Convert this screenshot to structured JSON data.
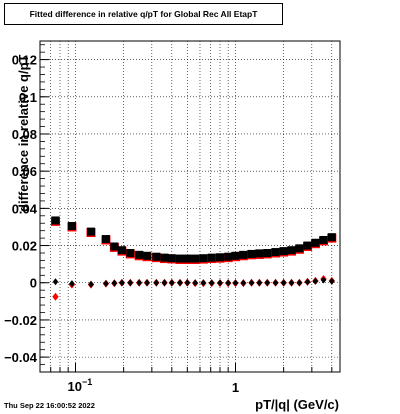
{
  "title": "Fitted difference in relative q/pT for Global Rec All EtapT",
  "timestamp": "Thu Sep 22 16:00:52 2022",
  "chart_data": {
    "type": "scatter",
    "title": "Fitted difference in relative q/pT for Global Rec All EtapT",
    "xlabel": "pT/|q| (GeV/c)",
    "ylabel": "difference in relative q/pT",
    "x_scale": "log",
    "xlim": [
      0.06,
      4.5
    ],
    "ylim": [
      -0.048,
      0.13
    ],
    "grid": true,
    "xticklabels": [
      "10^{-1}",
      "1"
    ],
    "yticks": [
      -0.04,
      -0.02,
      0,
      0.02,
      0.04,
      0.06,
      0.08,
      0.1,
      0.12
    ],
    "yticklabels": [
      "−0.04",
      "−0.02",
      "0",
      "0.02",
      "0.04",
      "0.06",
      "0.08",
      "0.1",
      "0.12"
    ],
    "series": [
      {
        "marker": "square",
        "color": "#ff0000",
        "x": [
          0.075,
          0.095,
          0.125,
          0.155,
          0.175,
          0.195,
          0.22,
          0.25,
          0.28,
          0.32,
          0.36,
          0.4,
          0.45,
          0.5,
          0.56,
          0.63,
          0.71,
          0.8,
          0.9,
          1.0,
          1.12,
          1.26,
          1.41,
          1.58,
          1.78,
          2.0,
          2.24,
          2.51,
          2.82,
          3.16,
          3.55,
          4.0
        ],
        "y": [
          0.033,
          0.03,
          0.027,
          0.023,
          0.019,
          0.017,
          0.0155,
          0.0145,
          0.014,
          0.0135,
          0.013,
          0.0128,
          0.0125,
          0.0125,
          0.0125,
          0.0127,
          0.013,
          0.0132,
          0.0135,
          0.014,
          0.0145,
          0.015,
          0.0152,
          0.0155,
          0.016,
          0.0165,
          0.017,
          0.018,
          0.0195,
          0.021,
          0.0225,
          0.024
        ]
      },
      {
        "marker": "square",
        "color": "#000000",
        "x": [
          0.075,
          0.095,
          0.125,
          0.155,
          0.175,
          0.195,
          0.22,
          0.25,
          0.28,
          0.32,
          0.36,
          0.4,
          0.45,
          0.5,
          0.56,
          0.63,
          0.71,
          0.8,
          0.9,
          1.0,
          1.12,
          1.26,
          1.41,
          1.58,
          1.78,
          2.0,
          2.24,
          2.51,
          2.82,
          3.16,
          3.55,
          4.0
        ],
        "y": [
          0.0335,
          0.0305,
          0.0275,
          0.0235,
          0.0195,
          0.0175,
          0.016,
          0.015,
          0.0145,
          0.014,
          0.0135,
          0.0132,
          0.013,
          0.013,
          0.013,
          0.0132,
          0.0135,
          0.0137,
          0.014,
          0.0145,
          0.015,
          0.0155,
          0.0158,
          0.016,
          0.0165,
          0.017,
          0.0175,
          0.0185,
          0.02,
          0.0215,
          0.023,
          0.0245
        ]
      },
      {
        "marker": "diamond",
        "color": "#ff0000",
        "x": [
          0.075,
          0.095,
          0.125,
          0.155,
          0.175,
          0.195,
          0.22,
          0.25,
          0.28,
          0.32,
          0.36,
          0.4,
          0.45,
          0.5,
          0.56,
          0.63,
          0.71,
          0.8,
          0.9,
          1.0,
          1.12,
          1.26,
          1.41,
          1.58,
          1.78,
          2.0,
          2.24,
          2.51,
          2.82,
          3.16,
          3.55,
          4.0
        ],
        "y": [
          -0.0075,
          -0.001,
          -0.001,
          -0.0005,
          -0.0003,
          0,
          0,
          0,
          0,
          0,
          0,
          0,
          0,
          0,
          -0.0002,
          -0.0002,
          -0.0002,
          -0.0002,
          -0.0002,
          -0.0002,
          -0.0002,
          0,
          0,
          0,
          0,
          0,
          0,
          0,
          0.0005,
          0.001,
          0.002,
          0.001
        ]
      },
      {
        "marker": "diamond",
        "color": "#000000",
        "x": [
          0.075,
          0.095,
          0.125,
          0.155,
          0.175,
          0.195,
          0.22,
          0.25,
          0.28,
          0.32,
          0.36,
          0.4,
          0.45,
          0.5,
          0.56,
          0.63,
          0.71,
          0.8,
          0.9,
          1.0,
          1.12,
          1.26,
          1.41,
          1.58,
          1.78,
          2.0,
          2.24,
          2.51,
          2.82,
          3.16,
          3.55,
          4.0
        ],
        "y": [
          0.0005,
          -0.0005,
          -0.0008,
          -0.0004,
          -0.0002,
          0,
          0,
          0,
          0,
          0,
          0,
          0,
          0,
          0,
          -0.0001,
          -0.0001,
          -0.0001,
          -0.0001,
          -0.0001,
          -0.0001,
          -0.0001,
          0,
          0,
          0,
          0,
          0,
          0,
          0,
          0.0004,
          0.0008,
          0.0015,
          0.0008
        ]
      }
    ]
  }
}
